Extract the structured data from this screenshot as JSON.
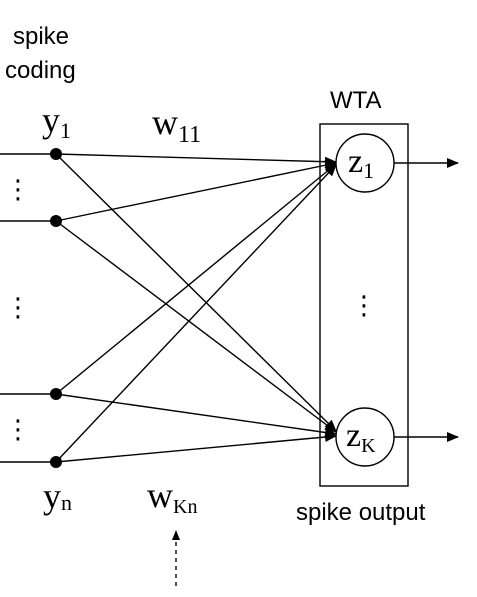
{
  "labels": {
    "coding_line1": "spike",
    "coding_line2": "coding",
    "wta": "WTA",
    "spike_output": "spike output",
    "y1_base": "y",
    "y1_sub": "1",
    "yn_base": "y",
    "yn_sub": "n",
    "w11_base": "w",
    "w11_sub": "11",
    "wkn_base": "w",
    "wkn_sub": "Kn",
    "z1_base": "z",
    "z1_sub": "1",
    "zk_base": "z",
    "zk_sub": "K"
  },
  "ellipsis": "⋮",
  "colors": {
    "ink": "#000000",
    "background": "#ffffff"
  }
}
